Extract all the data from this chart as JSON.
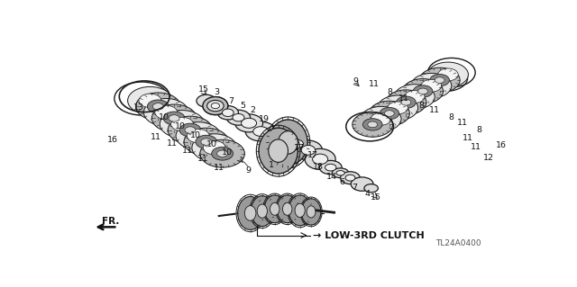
{
  "bg_color": "#ffffff",
  "fig_width": 6.4,
  "fig_height": 3.19,
  "dpi": 100,
  "label_text": "LOW-3RD CLUTCH",
  "part_code": "TL24A0400",
  "edge_color": "#1a1a1a",
  "fill_friction": "#c8c8c8",
  "fill_steel": "#f0f0f0",
  "fill_dark": "#555555"
}
